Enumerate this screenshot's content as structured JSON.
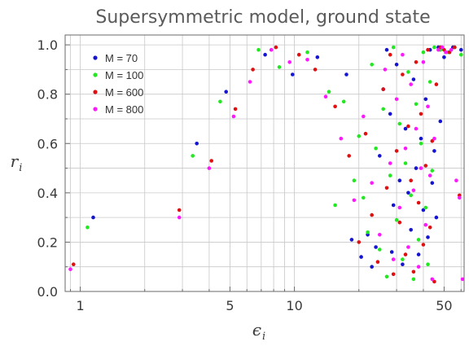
{
  "chart_data": {
    "type": "scatter",
    "title": "Supersymmetric model, ground state",
    "xlabel": "ϵ",
    "xlabel_sub": "i",
    "ylabel": "r",
    "ylabel_sub": "i",
    "x_scale": "log",
    "xlim": [
      0.85,
      62
    ],
    "ylim": [
      0,
      1.04
    ],
    "x_ticks": [
      1,
      5,
      10,
      50
    ],
    "y_ticks": [
      0.0,
      0.2,
      0.4,
      0.6,
      0.8,
      1.0
    ],
    "y_tick_labels": [
      "0.0",
      "0.2",
      "0.4",
      "0.6",
      "0.8",
      "1.0"
    ],
    "grid": true,
    "legend_position": "top-left",
    "series": [
      {
        "name": "M = 70",
        "color": "#1515d0",
        "x": [
          1.15,
          3.5,
          4.8,
          7.3,
          9.8,
          12.8,
          17.5,
          18.5,
          20.5,
          22,
          23,
          24,
          25,
          26,
          27,
          28,
          28.5,
          29,
          30,
          31,
          32,
          33,
          34,
          35,
          36,
          37,
          38,
          39,
          40,
          41,
          42,
          43,
          44,
          45,
          46,
          47,
          48,
          50,
          55,
          60
        ],
        "y": [
          0.3,
          0.6,
          0.81,
          0.96,
          0.88,
          0.95,
          0.88,
          0.21,
          0.14,
          0.23,
          0.1,
          0.18,
          0.55,
          0.82,
          0.98,
          0.72,
          0.16,
          0.35,
          0.92,
          0.45,
          0.11,
          0.66,
          0.4,
          0.25,
          0.86,
          0.5,
          0.15,
          0.62,
          0.33,
          0.78,
          0.22,
          0.98,
          0.44,
          0.57,
          0.3,
          0.99,
          0.69,
          0.95,
          0.99,
          0.98
        ]
      },
      {
        "name": "M = 100",
        "color": "#22e822",
        "x": [
          1.08,
          3.35,
          4.5,
          6.8,
          8.5,
          11.5,
          14.5,
          15.5,
          17,
          19,
          20,
          21,
          22,
          23,
          24,
          25,
          26,
          27,
          28,
          29,
          30,
          31,
          32,
          33,
          34,
          35,
          36,
          37,
          38,
          39,
          40,
          41,
          42,
          43,
          44,
          45,
          48,
          52,
          56,
          60
        ],
        "y": [
          0.26,
          0.55,
          0.77,
          0.98,
          0.91,
          0.97,
          0.81,
          0.35,
          0.77,
          0.45,
          0.63,
          0.38,
          0.24,
          0.92,
          0.58,
          0.17,
          0.74,
          0.06,
          0.47,
          0.99,
          0.29,
          0.68,
          0.13,
          0.52,
          0.89,
          0.39,
          0.05,
          0.76,
          0.21,
          0.6,
          0.97,
          0.34,
          0.11,
          0.85,
          0.49,
          0.99,
          0.98,
          0.97,
          0.99,
          0.96
        ]
      },
      {
        "name": "M = 600",
        "color": "#e01010",
        "x": [
          0.93,
          2.9,
          4.1,
          5.3,
          6.4,
          8.2,
          10.5,
          12.5,
          15.5,
          18,
          20,
          21.5,
          23,
          24.5,
          26,
          27,
          28,
          29,
          30,
          31,
          32,
          33,
          34,
          35,
          36,
          37,
          38,
          39,
          40,
          41,
          42,
          43,
          44,
          45,
          46,
          48,
          50,
          53,
          56,
          59
        ],
        "y": [
          0.11,
          0.33,
          0.53,
          0.74,
          0.9,
          0.99,
          0.96,
          0.9,
          0.75,
          0.55,
          0.2,
          0.64,
          0.31,
          0.12,
          0.82,
          0.42,
          0.96,
          0.07,
          0.57,
          0.28,
          0.88,
          0.15,
          0.67,
          0.45,
          0.08,
          0.93,
          0.36,
          0.72,
          0.19,
          0.51,
          0.98,
          0.26,
          0.61,
          0.04,
          0.84,
          0.99,
          0.98,
          0.97,
          0.99,
          0.39
        ]
      },
      {
        "name": "M = 800",
        "color": "#ff18ff",
        "x": [
          0.9,
          2.9,
          4.0,
          5.2,
          6.2,
          7.8,
          9.5,
          11.5,
          14,
          16.5,
          19,
          21,
          23,
          25,
          26.5,
          28,
          29,
          30,
          31,
          32,
          33,
          34,
          35,
          36,
          37,
          38,
          39,
          40,
          41,
          42,
          43,
          44,
          45,
          47,
          49,
          51,
          54,
          57,
          59,
          61
        ],
        "y": [
          0.09,
          0.3,
          0.5,
          0.71,
          0.85,
          0.98,
          0.93,
          0.94,
          0.79,
          0.62,
          0.37,
          0.71,
          0.44,
          0.23,
          0.9,
          0.52,
          0.13,
          0.78,
          0.34,
          0.96,
          0.58,
          0.18,
          0.84,
          0.41,
          0.66,
          0.1,
          0.5,
          0.93,
          0.27,
          0.75,
          0.47,
          0.05,
          0.62,
          0.98,
          0.99,
          0.97,
          0.98,
          0.45,
          0.38,
          0.05
        ]
      }
    ]
  }
}
